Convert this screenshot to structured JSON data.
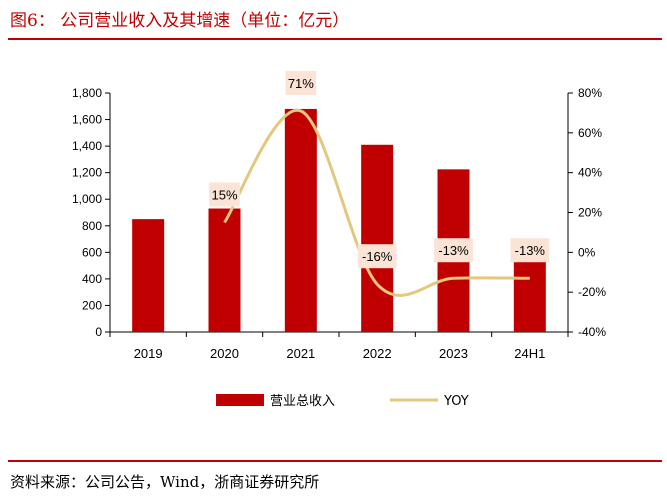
{
  "header": {
    "title": "图6：  公司营业收入及其增速（单位：亿元）"
  },
  "footer": {
    "source": "资料来源：公司公告，Wind，浙商证券研究所"
  },
  "colors": {
    "accent": "#c00000",
    "bar": "#c00000",
    "line": "#e3c77e",
    "label_bg": "#fbe3d6"
  },
  "chart_data": {
    "type": "bar",
    "categories": [
      "2019",
      "2020",
      "2021",
      "2022",
      "2023",
      "24H1"
    ],
    "series": [
      {
        "name": "营业总收入",
        "type": "bar",
        "axis": "left",
        "values": [
          850,
          930,
          1680,
          1410,
          1225,
          530
        ]
      },
      {
        "name": "YOY",
        "type": "line",
        "axis": "right",
        "values": [
          null,
          15,
          71,
          -16,
          -13,
          -13
        ]
      }
    ],
    "data_labels": [
      null,
      "15%",
      "71%",
      "-16%",
      "-13%",
      "-13%"
    ],
    "y_left": {
      "ylim": [
        0,
        1800
      ],
      "ticks": [
        "0",
        "200",
        "400",
        "600",
        "800",
        "1,000",
        "1,200",
        "1,400",
        "1,600",
        "1,800"
      ]
    },
    "y_right": {
      "ylim": [
        -40,
        80
      ],
      "ticks": [
        "-40%",
        "-20%",
        "0%",
        "20%",
        "40%",
        "60%",
        "80%"
      ]
    },
    "legend": [
      "营业总收入",
      "YOY"
    ],
    "legend_position": "bottom-center",
    "grid": false
  }
}
